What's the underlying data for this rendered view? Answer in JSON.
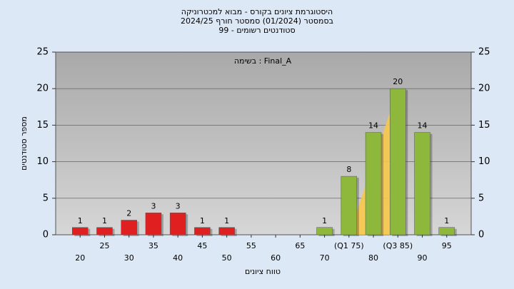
{
  "chart_data": {
    "type": "bar",
    "title": [
      "היסטוגרמת ציונים בקורס - מבוא למכטרוניקה",
      "בסמסטר  (01/2024)  סמסטר חורף 2024/25",
      "סטודנטים רשומים - 99"
    ],
    "annotation": "בשימה : Final_A",
    "x_label": "טווח ציונים",
    "y_label": "מספר סטודנטים",
    "categories": [
      "20",
      "25",
      "30",
      "35",
      "40",
      "45",
      "50",
      "55",
      "60",
      "65",
      "70",
      "(Q1 75)",
      "80",
      "(Q3 85)",
      "90",
      "95"
    ],
    "values": [
      1,
      1,
      2,
      3,
      3,
      1,
      1,
      0,
      0,
      0,
      1,
      8,
      14,
      20,
      14,
      1
    ],
    "colors": [
      "#e02020",
      "#e02020",
      "#e02020",
      "#e02020",
      "#e02020",
      "#e02020",
      "#e02020",
      "#e02020",
      "#e02020",
      "#e02020",
      "#8db83c",
      "#8db83c",
      "#8db83c",
      "#8db83c",
      "#8db83c",
      "#8db83c"
    ],
    "ylim": [
      0,
      25
    ],
    "yticks": [
      0,
      5,
      10,
      15,
      20,
      25
    ],
    "y2lim": [
      0,
      25
    ],
    "y2ticks": [
      0,
      5,
      10,
      15,
      20,
      25
    ],
    "grid": true
  }
}
